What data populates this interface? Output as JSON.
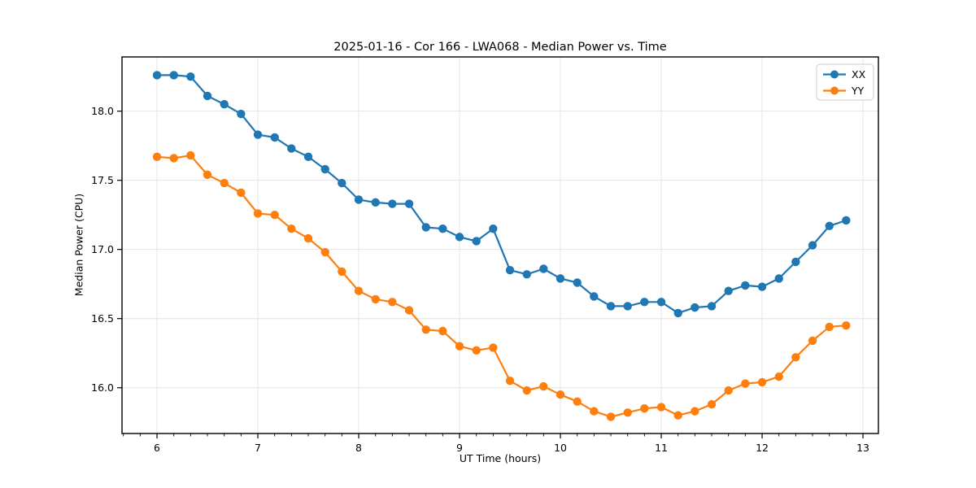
{
  "chart_data": {
    "type": "line",
    "title": "2025-01-16 - Cor 166 - LWA068 - Median Power vs. Time",
    "xlabel": "UT Time (hours)",
    "ylabel": "Median Power (CPU)",
    "xlim": [
      5.653,
      13.153
    ],
    "ylim": [
      15.669,
      18.392
    ],
    "xticks": [
      6,
      7,
      8,
      9,
      10,
      11,
      12,
      13
    ],
    "yticks": [
      16.0,
      16.5,
      17.0,
      17.5,
      18.0
    ],
    "x_minor_step_hours": 0.1667,
    "grid": true,
    "legend_position": "upper right",
    "background_color": "#ffffff",
    "grid_color": "#e4e4e4",
    "x": [
      6.0,
      6.167,
      6.333,
      6.5,
      6.667,
      6.833,
      7.0,
      7.167,
      7.333,
      7.5,
      7.667,
      7.833,
      8.0,
      8.167,
      8.333,
      8.5,
      8.667,
      8.833,
      9.0,
      9.167,
      9.333,
      9.5,
      9.667,
      9.833,
      10.0,
      10.167,
      10.333,
      10.5,
      10.667,
      10.833,
      11.0,
      11.167,
      11.333,
      11.5,
      11.667,
      11.833,
      12.0,
      12.167,
      12.333,
      12.5,
      12.667,
      12.833
    ],
    "series": [
      {
        "name": "XX",
        "color": "#1f77b4",
        "marker": "circle",
        "values": [
          18.26,
          18.26,
          18.25,
          18.11,
          18.05,
          17.98,
          17.83,
          17.81,
          17.73,
          17.67,
          17.58,
          17.48,
          17.36,
          17.34,
          17.33,
          17.33,
          17.16,
          17.15,
          17.09,
          17.06,
          17.15,
          16.85,
          16.82,
          16.86,
          16.79,
          16.76,
          16.66,
          16.59,
          16.59,
          16.62,
          16.62,
          16.54,
          16.58,
          16.59,
          16.7,
          16.74,
          16.73,
          16.79,
          16.91,
          17.03,
          17.17,
          17.21
        ]
      },
      {
        "name": "YY",
        "color": "#ff7f0e",
        "marker": "circle",
        "values": [
          17.67,
          17.66,
          17.68,
          17.54,
          17.48,
          17.41,
          17.26,
          17.25,
          17.15,
          17.08,
          16.98,
          16.84,
          16.7,
          16.64,
          16.62,
          16.56,
          16.42,
          16.41,
          16.3,
          16.27,
          16.29,
          16.05,
          15.98,
          16.01,
          15.95,
          15.9,
          15.83,
          15.79,
          15.82,
          15.85,
          15.86,
          15.8,
          15.83,
          15.88,
          15.98,
          16.03,
          16.04,
          16.08,
          16.22,
          16.34,
          16.44,
          16.45
        ]
      }
    ]
  }
}
